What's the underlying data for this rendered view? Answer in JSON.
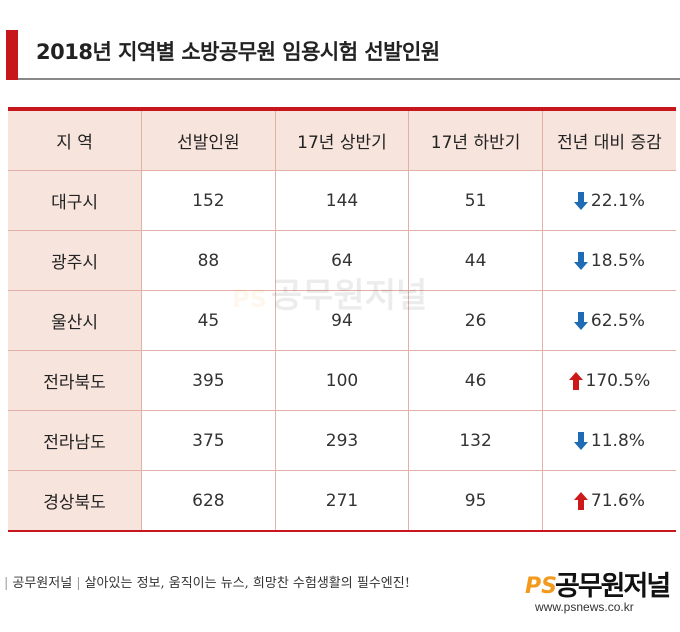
{
  "title": "2018년 지역별 소방공무원 임용시험 선발인원",
  "colors": {
    "accent": "#c8161d",
    "header_bg": "#f7e4dd",
    "arrow_up": "#cc1a1a",
    "arrow_down": "#1f6bb5"
  },
  "table": {
    "headers": [
      "지 역",
      "선발인원",
      "17년 상반기",
      "17년 하반기",
      "전년 대비 증감"
    ],
    "rows": [
      {
        "region": "대구시",
        "selected": "152",
        "h1_2017": "144",
        "h2_2017": "51",
        "change": "22.1%",
        "direction": "down"
      },
      {
        "region": "광주시",
        "selected": "88",
        "h1_2017": "64",
        "h2_2017": "44",
        "change": "18.5%",
        "direction": "down"
      },
      {
        "region": "울산시",
        "selected": "45",
        "h1_2017": "94",
        "h2_2017": "26",
        "change": "62.5%",
        "direction": "down"
      },
      {
        "region": "전라북도",
        "selected": "395",
        "h1_2017": "100",
        "h2_2017": "46",
        "change": "170.5%",
        "direction": "up"
      },
      {
        "region": "전라남도",
        "selected": "375",
        "h1_2017": "293",
        "h2_2017": "132",
        "change": "11.8%",
        "direction": "down"
      },
      {
        "region": "경상북도",
        "selected": "628",
        "h1_2017": "271",
        "h2_2017": "95",
        "change": "71.6%",
        "direction": "up"
      }
    ]
  },
  "watermark": {
    "ps": "PS",
    "name": "공무원저널"
  },
  "footer": {
    "left": "공무원저널",
    "tagline": "살아있는 정보, 움직이는 뉴스, 희망찬 수험생활의 필수엔진!"
  },
  "logo": {
    "ps": "PS",
    "name": "공무원저널",
    "url": "www.psnews.co.kr"
  }
}
